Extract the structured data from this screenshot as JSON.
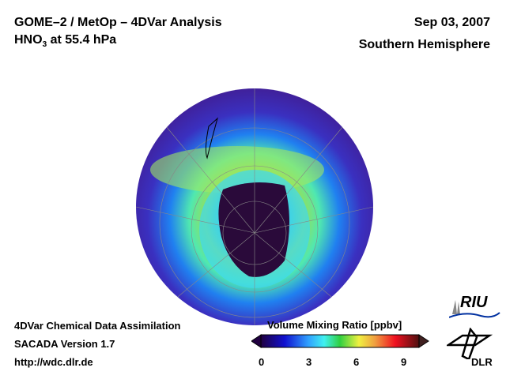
{
  "header": {
    "title": "GOME–2 / MetOp – 4DVar Analysis",
    "species_main": "HNO",
    "species_sub": "3",
    "species_level": " at 55.4 hPa",
    "date": "Sep 03, 2007",
    "region": "Southern Hemisphere"
  },
  "footer": {
    "line1": "4DVar Chemical Data Assimilation",
    "line2": "SACADA Version 1.7",
    "line3": "http://wdc.dlr.de"
  },
  "colorbar": {
    "title": "Volume Mixing Ratio [ppbv]",
    "ticks": [
      "0",
      "3",
      "6",
      "9"
    ],
    "range": [
      0,
      10
    ]
  },
  "logos": {
    "riu": "RIU",
    "dlr": "DLR"
  },
  "colors": {
    "low": "#2a0a50",
    "mid": "#40e8e0",
    "high": "#5a1010"
  }
}
